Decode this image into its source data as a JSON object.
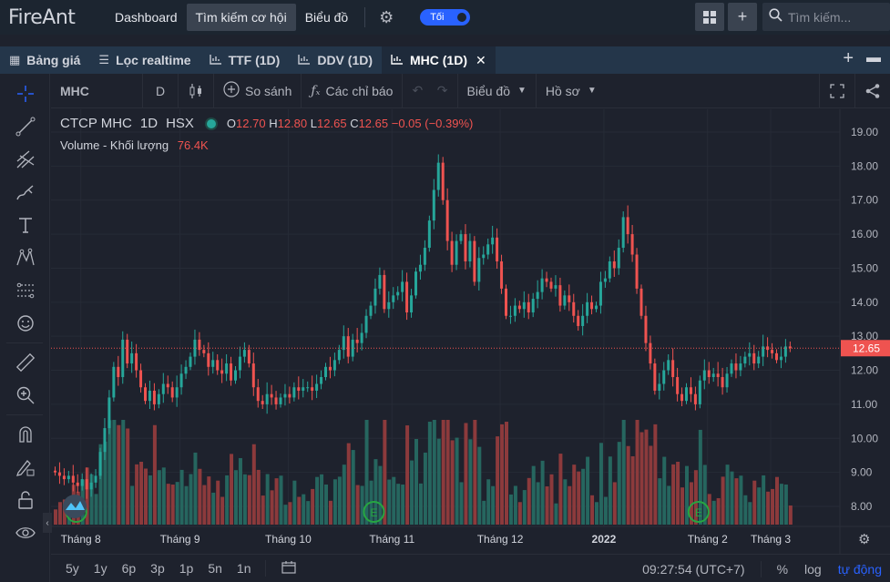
{
  "app": {
    "logo": "FireAnt"
  },
  "topnav": {
    "dashboard": "Dashboard",
    "search_opportunity": "Tìm kiếm cơ hội",
    "chart": "Biểu đồ",
    "theme_label": "Tối",
    "search_placeholder": "Tìm kiếm..."
  },
  "tabs": [
    {
      "label": "Bảng giá",
      "icon": "table-icon"
    },
    {
      "label": "Lọc realtime",
      "icon": "filter-icon"
    },
    {
      "label": "TTF (1D)",
      "icon": "chart-icon"
    },
    {
      "label": "DDV (1D)",
      "icon": "chart-icon"
    },
    {
      "label": "MHC (1D)",
      "icon": "chart-icon",
      "active": true
    }
  ],
  "toolbar": {
    "symbol": "MHC",
    "interval": "D",
    "compare": "So sánh",
    "indicators": "Các chỉ báo",
    "chart_type": "Biểu đồ",
    "profile": "Hồ sơ"
  },
  "legend": {
    "title": "CTCP MHC",
    "interval": "1D",
    "exchange": "HSX",
    "o_label": "O",
    "o": "12.70",
    "h_label": "H",
    "h": "12.80",
    "l_label": "L",
    "l": "12.65",
    "c_label": "C",
    "c": "12.65",
    "change": "−0.05 (−0.39%)",
    "volume_label": "Volume - Khối lượng",
    "volume": "76.4K"
  },
  "bottom": {
    "ranges": [
      "5y",
      "1y",
      "6p",
      "3p",
      "1p",
      "5n",
      "1n"
    ],
    "time": "09:27:54 (UTC+7)",
    "percent": "%",
    "log": "log",
    "auto": "tự động"
  },
  "colors": {
    "up": "#26a69a",
    "down": "#ef5350",
    "accent": "#2962ff",
    "background": "#1e222d"
  },
  "chart_data": {
    "type": "candlestick",
    "price_axis": {
      "min": 7.6,
      "max": 19.5,
      "ticks": [
        "8.00",
        "9.00",
        "10.00",
        "11.00",
        "12.00",
        "13.00",
        "14.00",
        "15.00",
        "16.00",
        "17.00",
        "18.00",
        "19.00"
      ]
    },
    "time_axis": [
      "Tháng 8",
      "Tháng 9",
      "Tháng 10",
      "Tháng 11",
      "Tháng 12",
      "2022",
      "Tháng 2",
      "Tháng 3"
    ],
    "last_price": "12.65",
    "closes": [
      9.0,
      8.9,
      8.8,
      8.9,
      8.7,
      8.6,
      8.8,
      8.5,
      8.7,
      8.9,
      9.6,
      10.3,
      11.2,
      12.1,
      11.8,
      12.9,
      12.2,
      12.5,
      12.0,
      11.5,
      11.1,
      11.4,
      11.0,
      11.3,
      11.6,
      11.5,
      11.2,
      11.5,
      11.9,
      12.1,
      12.4,
      12.9,
      12.6,
      12.5,
      12.1,
      12.3,
      12.0,
      11.9,
      12.2,
      11.7,
      12.0,
      12.4,
      12.6,
      12.2,
      11.5,
      11.1,
      11.0,
      11.3,
      11.2,
      11.0,
      11.2,
      11.3,
      11.2,
      11.5,
      11.4,
      11.5,
      11.5,
      11.4,
      11.6,
      11.8,
      12.1,
      12.0,
      12.3,
      12.6,
      13.0,
      12.4,
      12.9,
      12.8,
      13.1,
      13.6,
      13.9,
      14.4,
      14.8,
      13.8,
      14.0,
      14.2,
      14.3,
      14.6,
      13.7,
      14.2,
      14.9,
      15.1,
      15.6,
      16.4,
      17.3,
      18.1,
      17.0,
      15.8,
      15.1,
      15.8,
      16.0,
      15.2,
      15.8,
      14.6,
      15.3,
      15.4,
      15.7,
      15.9,
      15.2,
      14.4,
      13.6,
      13.6,
      13.9,
      13.8,
      14.0,
      13.7,
      14.1,
      14.3,
      14.7,
      14.6,
      14.4,
      14.5,
      13.9,
      14.2,
      14.0,
      13.6,
      13.3,
      13.6,
      14.0,
      13.8,
      13.9,
      14.6,
      14.7,
      15.2,
      15.0,
      15.6,
      16.5,
      16.0,
      15.4,
      14.4,
      13.6,
      12.8,
      12.2,
      11.4,
      11.6,
      12.0,
      12.3,
      11.8,
      11.3,
      11.1,
      11.5,
      11.3,
      11.0,
      11.7,
      12.0,
      11.8,
      11.9,
      11.8,
      11.5,
      11.9,
      12.2,
      12.0,
      12.2,
      12.4,
      12.5,
      12.2,
      12.4,
      12.7,
      12.6,
      12.5,
      12.3,
      12.4,
      12.7,
      12.65
    ],
    "event_markers": [
      "",
      "E",
      "E"
    ]
  }
}
